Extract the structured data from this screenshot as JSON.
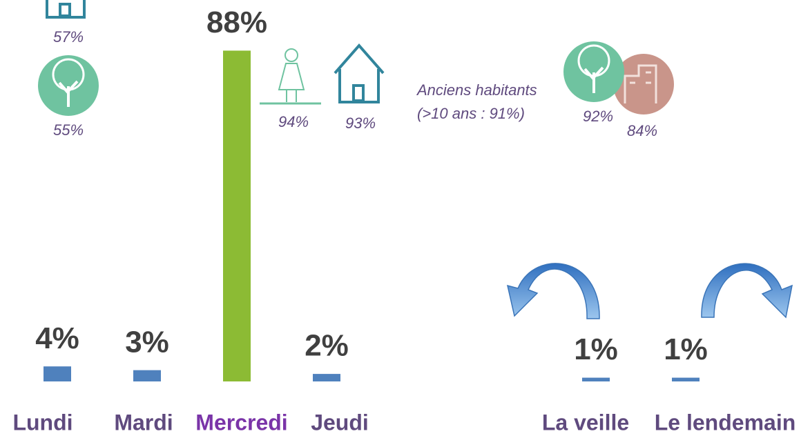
{
  "chart_data": {
    "type": "bar",
    "categories": [
      "Lundi",
      "Mardi",
      "Mercredi",
      "Jeudi",
      "La veille",
      "Le lendemain"
    ],
    "values": [
      4,
      3,
      88,
      2,
      1,
      1
    ],
    "value_labels": [
      "4%",
      "3%",
      "88%",
      "2%",
      "1%",
      "1%"
    ],
    "colors": [
      "#4f81bd",
      "#4f81bd",
      "#8cbb34",
      "#4f81bd",
      "#4f81bd",
      "#4f81bd"
    ],
    "label_colors": [
      "#5f4a7e",
      "#5f4a7e",
      "#7a34a8",
      "#5f4a7e",
      "#5f4a7e",
      "#5f4a7e"
    ],
    "annotations": [
      "57%",
      "55%",
      "94%",
      "93%",
      "Anciens habitants",
      "(>10 ans : 91%)",
      "92%",
      "84%"
    ]
  }
}
